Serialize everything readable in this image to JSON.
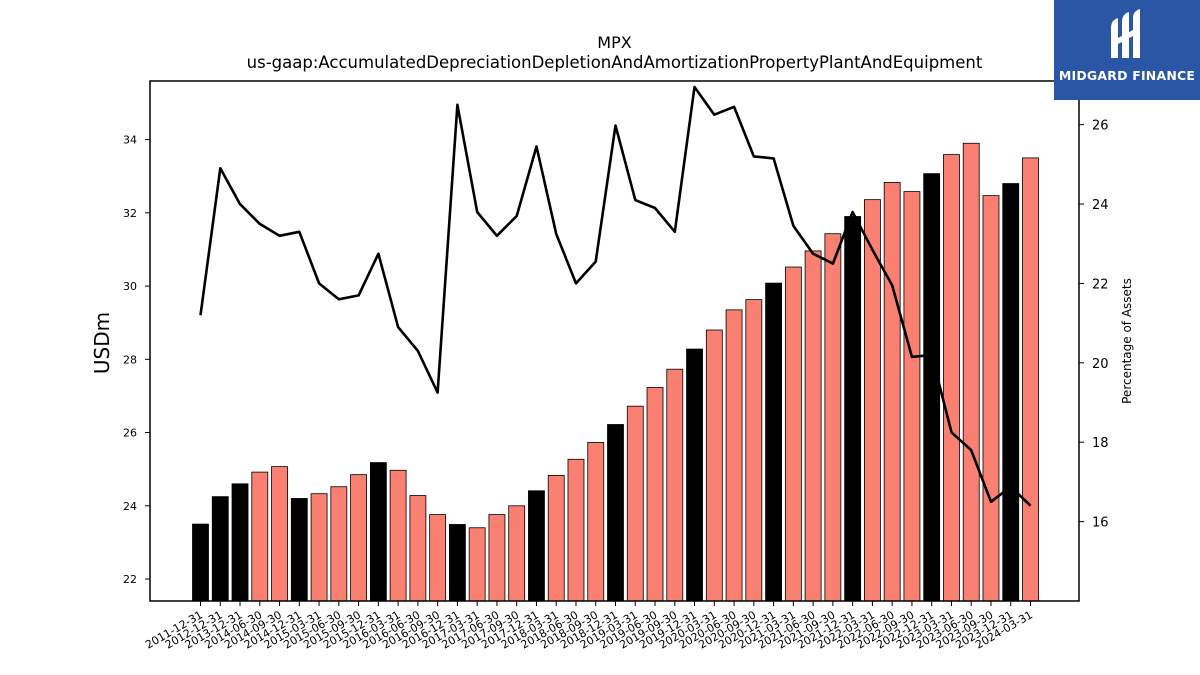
{
  "chart_data": {
    "type": "bar",
    "title": "MPX",
    "subtitle": "us-gaap:AccumulatedDepreciationDepletionAndAmortizationPropertyPlantAndEquipment",
    "ylabel": "USDm",
    "y2label": "Percentage of Assets",
    "ylim": [
      21.4,
      35.6
    ],
    "y2lim": [
      14.0,
      27.1
    ],
    "yticks": [
      22,
      24,
      26,
      28,
      30,
      32,
      34
    ],
    "y2ticks": [
      16,
      18,
      20,
      22,
      24,
      26
    ],
    "categories": [
      "2011-12-31",
      "2012-12-31",
      "2013-12-31",
      "2014-06-30",
      "2014-09-30",
      "2014-12-31",
      "2015-03-31",
      "2015-06-30",
      "2015-09-30",
      "2015-12-31",
      "2016-03-31",
      "2016-06-30",
      "2016-09-30",
      "2016-12-31",
      "2017-03-31",
      "2017-06-30",
      "2017-09-30",
      "2017-12-31",
      "2018-03-31",
      "2018-06-30",
      "2018-09-30",
      "2018-12-31",
      "2019-03-31",
      "2019-06-30",
      "2019-09-30",
      "2019-12-31",
      "2020-03-31",
      "2020-06-30",
      "2020-09-30",
      "2020-12-31",
      "2021-03-31",
      "2021-06-30",
      "2021-09-30",
      "2021-12-31",
      "2022-03-31",
      "2022-06-30",
      "2022-09-30",
      "2022-12-31",
      "2023-03-31",
      "2023-06-30",
      "2023-09-30",
      "2023-12-31",
      "2024-03-31"
    ],
    "series": [
      {
        "kind": "bar",
        "values": [
          23.5,
          24.25,
          24.6,
          24.92,
          25.07,
          24.2,
          24.33,
          24.52,
          24.85,
          25.18,
          24.97,
          24.28,
          23.76,
          23.49,
          23.4,
          23.76,
          24.0,
          24.41,
          24.83,
          25.27,
          25.73,
          26.22,
          26.72,
          27.23,
          27.73,
          28.28,
          28.8,
          29.35,
          29.63,
          30.08,
          30.52,
          30.96,
          31.43,
          31.9,
          32.36,
          32.83,
          32.58,
          33.07,
          33.59,
          33.9,
          32.47,
          32.8,
          33.5
        ],
        "colors": [
          "#000000",
          "#000000",
          "#000000",
          "#fa8072",
          "#fa8072",
          "#000000",
          "#fa8072",
          "#fa8072",
          "#fa8072",
          "#000000",
          "#fa8072",
          "#fa8072",
          "#fa8072",
          "#000000",
          "#fa8072",
          "#fa8072",
          "#fa8072",
          "#000000",
          "#fa8072",
          "#fa8072",
          "#fa8072",
          "#000000",
          "#fa8072",
          "#fa8072",
          "#fa8072",
          "#000000",
          "#fa8072",
          "#fa8072",
          "#fa8072",
          "#000000",
          "#fa8072",
          "#fa8072",
          "#fa8072",
          "#000000",
          "#fa8072",
          "#fa8072",
          "#fa8072",
          "#000000",
          "#fa8072",
          "#fa8072",
          "#fa8072",
          "#000000",
          "#fa8072"
        ]
      },
      {
        "kind": "line",
        "axis": "right",
        "color": "#000000",
        "values": [
          21.2,
          24.9,
          24.0,
          23.5,
          23.2,
          23.3,
          22.0,
          21.6,
          21.7,
          22.75,
          20.9,
          20.3,
          19.25,
          26.5,
          23.8,
          23.2,
          23.7,
          25.45,
          23.25,
          22.0,
          22.55,
          25.98,
          24.1,
          23.9,
          23.3,
          26.95,
          26.25,
          26.45,
          25.2,
          25.15,
          23.45,
          22.75,
          22.5,
          23.8,
          22.85,
          21.95,
          20.15,
          20.2,
          18.25,
          17.8,
          16.5,
          16.88,
          16.4
        ]
      }
    ],
    "grid": false,
    "legend": "none"
  },
  "logo": {
    "text": "MIDGARD FINANCE"
  }
}
